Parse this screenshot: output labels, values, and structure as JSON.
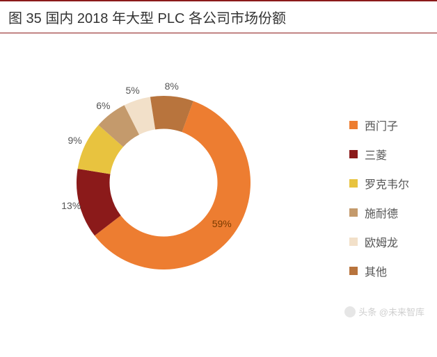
{
  "title": "图 35 国内 2018 年大型 PLC 各公司市场份额",
  "chart": {
    "type": "donut",
    "inner_radius_ratio": 0.62,
    "background_color": "#ffffff",
    "title_fontsize": 20,
    "title_color": "#333333",
    "title_border_color": "#8b1a1a",
    "label_fontsize": 14,
    "label_color": "#555555",
    "legend_fontsize": 16,
    "legend_color": "#555555",
    "segments": [
      {
        "name": "西门子",
        "value": 59,
        "label": "59%",
        "color": "#ed7d31"
      },
      {
        "name": "三菱",
        "value": 13,
        "label": "13%",
        "color": "#8b1a1a"
      },
      {
        "name": "罗克韦尔",
        "value": 9,
        "label": "9%",
        "color": "#e8c33f"
      },
      {
        "name": "施耐德",
        "value": 6,
        "label": "6%",
        "color": "#c49a6c"
      },
      {
        "name": "欧姆龙",
        "value": 5,
        "label": "5%",
        "color": "#f2e0c9"
      },
      {
        "name": "其他",
        "value": 8,
        "label": "8%",
        "color": "#b8743d"
      }
    ]
  },
  "watermark": {
    "text": "头条 @未来智库"
  }
}
